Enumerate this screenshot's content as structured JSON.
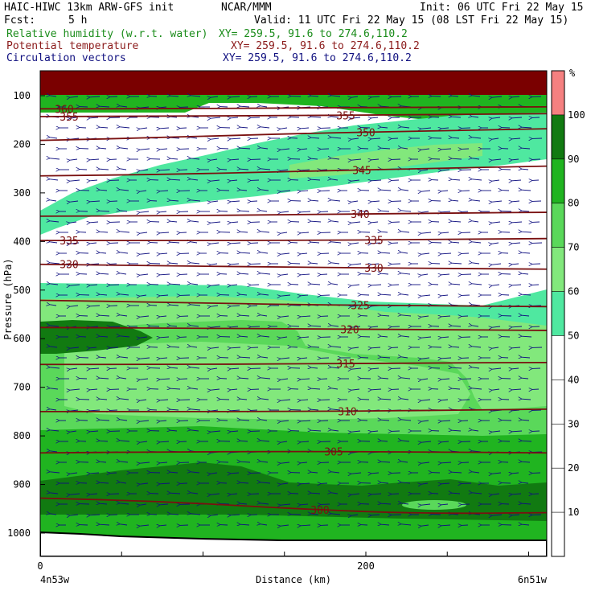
{
  "header": {
    "model": "HAIC-HIWC 13km ARW-GFS init",
    "org": "NCAR/MMM",
    "init": "Init: 06 UTC Fri 22 May 15",
    "fcst_label": "Fcst:",
    "fcst_value": "5 h",
    "valid": "Valid: 11 UTC Fri 22 May 15 (08 LST Fri 22 May 15)",
    "fields": [
      {
        "label": "Relative humidity (w.r.t. water)",
        "xy": "XY= 259.5, 91.6 to 274.6,110.2",
        "color": "#1a8c1a"
      },
      {
        "label": "Potential temperature",
        "xy": "XY= 259.5, 91.6 to 274.6,110.2",
        "color": "#8b1a1a"
      },
      {
        "label": "Circulation vectors",
        "xy": "XY= 259.5, 91.6 to 274.6,110.2",
        "color": "#101080"
      }
    ]
  },
  "chart_data": {
    "type": "heatmap",
    "ylabel": "Pressure (hPa)",
    "xlabel": "Distance (km)",
    "x_ticks": [
      0,
      200
    ],
    "x_end_labels": [
      "4n53w",
      "6n51w"
    ],
    "y_ticks": [
      100,
      200,
      300,
      400,
      500,
      600,
      700,
      800,
      900,
      1000
    ],
    "colorbar": {
      "unit": "%",
      "ticks": [
        10,
        20,
        30,
        40,
        50,
        60,
        70,
        80,
        90,
        100
      ],
      "bins": [
        {
          "from": 50,
          "to": 60,
          "color": "#4fe8a0"
        },
        {
          "from": 60,
          "to": 70,
          "color": "#82e87c"
        },
        {
          "from": 70,
          "to": 80,
          "color": "#5ad85a"
        },
        {
          "from": 80,
          "to": 90,
          "color": "#20b420"
        },
        {
          "from": 90,
          "to": 100,
          "color": "#117a11"
        },
        {
          "from": 100,
          "to": 110,
          "color": "#f58080"
        }
      ]
    },
    "theta_contours": [
      {
        "value": "360",
        "p": [
          127,
          127,
          125,
          124,
          123
        ]
      },
      {
        "value": "355",
        "p": [
          143,
          142,
          141,
          139,
          137
        ]
      },
      {
        "value": "350",
        "p": [
          192,
          186,
          178,
          173,
          168
        ]
      },
      {
        "value": "345",
        "p": [
          265,
          262,
          256,
          250,
          245
        ]
      },
      {
        "value": "340",
        "p": [
          348,
          347,
          345,
          342,
          340
        ]
      },
      {
        "value": "335",
        "p": [
          398,
          398,
          398,
          396,
          394
        ]
      },
      {
        "value": "330",
        "p": [
          447,
          450,
          453,
          455,
          457
        ]
      },
      {
        "value": "325",
        "p": [
          521,
          525,
          530,
          532,
          534
        ]
      },
      {
        "value": "320",
        "p": [
          577,
          578,
          580,
          581,
          583
        ]
      },
      {
        "value": "315",
        "p": [
          653,
          653,
          652,
          650,
          649
        ]
      },
      {
        "value": "310",
        "p": [
          750,
          750,
          750,
          748,
          745
        ]
      },
      {
        "value": "305",
        "p": [
          835,
          833,
          832,
          833,
          835
        ]
      },
      {
        "value": "300",
        "p": [
          928,
          935,
          950,
          960,
          958
        ]
      }
    ]
  }
}
